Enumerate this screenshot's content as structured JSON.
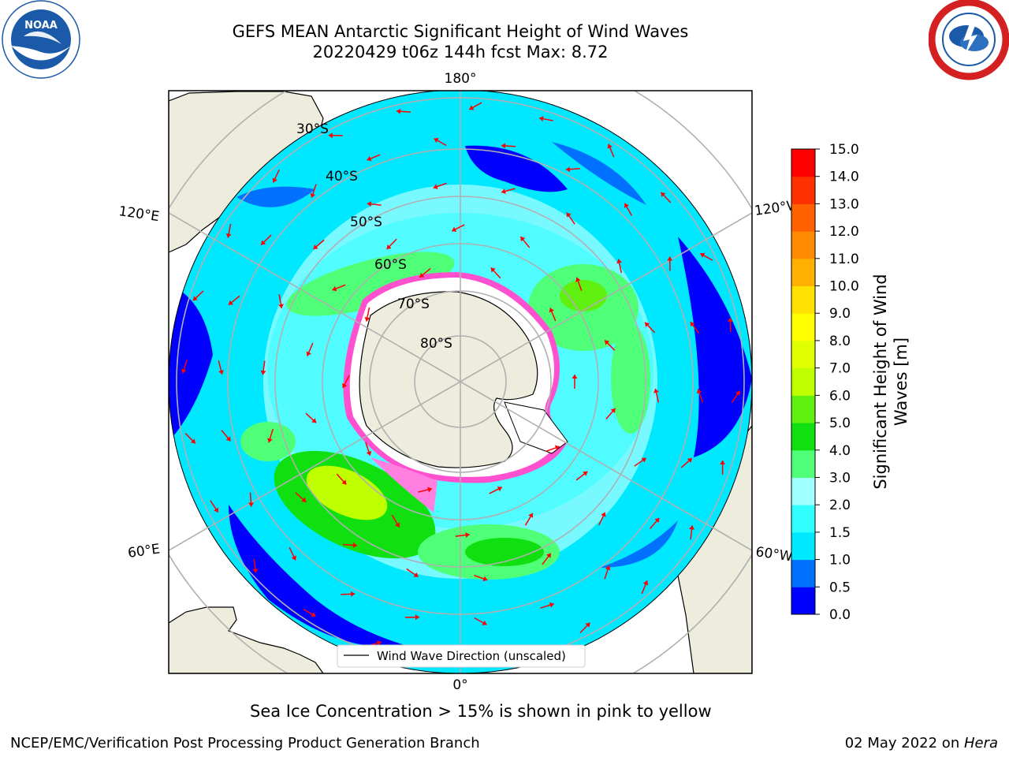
{
  "header": {
    "title_line1": "GEFS MEAN Antarctic Significant Height of Wind Waves",
    "title_line2": "20220429 t06z 144h fcst   Max: 8.72"
  },
  "logos": {
    "left": {
      "text": "NOAA",
      "ring_text": "NATIONAL OCEANIC AND ATMOSPHERIC ADMINISTRATION · U.S. DEPARTMENT OF COMMERCE",
      "color": "#1a5aa8"
    },
    "right": {
      "ring_text": "NATIONAL WEATHER SERVICE",
      "color": "#d42020"
    }
  },
  "map": {
    "lon_labels": {
      "top": "180°",
      "bottom": "0°",
      "upper_left": "120°E",
      "upper_right": "120°W",
      "lower_left": "60°E",
      "lower_right": "60°W"
    },
    "lat_labels": [
      "30°S",
      "40°S",
      "50°S",
      "60°S",
      "70°S",
      "80°S"
    ],
    "legend_label": "Wind Wave Direction (unscaled)",
    "colors": {
      "land": "#eeecdc",
      "ocean_low": "#0000ff",
      "arrow": "#ff0000",
      "grid": "#b0b0b0",
      "sea_ice": "#ff50d0"
    }
  },
  "colorbar": {
    "label": "Significant Height of Wind Waves [m]",
    "label_line1": "Significant Height of Wind",
    "label_line2": "Waves [m]",
    "ticks": [
      "0.0",
      "0.5",
      "1.0",
      "1.5",
      "2.0",
      "3.0",
      "4.0",
      "5.0",
      "6.0",
      "7.0",
      "8.0",
      "9.0",
      "10.0",
      "11.0",
      "12.0",
      "13.0",
      "14.0",
      "15.0"
    ],
    "colors": [
      "#0000ff",
      "#0070ff",
      "#00e8ff",
      "#30ffff",
      "#a0ffff",
      "#50ff78",
      "#10e010",
      "#60f010",
      "#c0ff00",
      "#e0ff00",
      "#ffff00",
      "#ffe000",
      "#ffb000",
      "#ff8c00",
      "#ff6000",
      "#ff3000",
      "#ff0000"
    ]
  },
  "caption": "Sea Ice Concentration > 15% is shown in pink to yellow",
  "footer": {
    "left": "NCEP/EMC/Verification Post Processing Product Generation Branch",
    "right_prefix": "02 May 2022 on ",
    "right_machine": "Hera"
  }
}
